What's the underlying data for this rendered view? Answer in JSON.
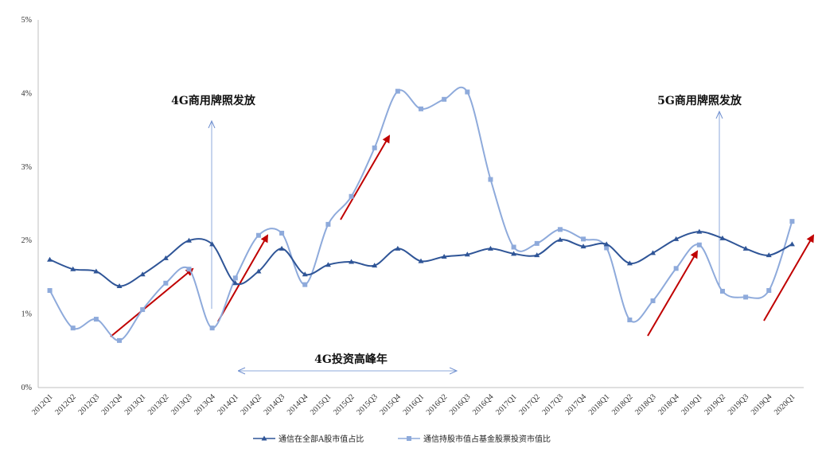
{
  "chart_data": {
    "type": "line",
    "categories": [
      "2012Q1",
      "2012Q2",
      "2012Q3",
      "2012Q4",
      "2013Q1",
      "2013Q2",
      "2013Q3",
      "2013Q4",
      "2014Q1",
      "2014Q2",
      "2014Q3",
      "2014Q4",
      "2015Q1",
      "2015Q2",
      "2015Q3",
      "2015Q4",
      "2016Q1",
      "2016Q2",
      "2016Q3",
      "2016Q4",
      "2017Q1",
      "2017Q2",
      "2017Q3",
      "2017Q4",
      "2018Q1",
      "2018Q2",
      "2018Q3",
      "2018Q4",
      "2019Q1",
      "2019Q2",
      "2019Q3",
      "2019Q4",
      "2020Q1"
    ],
    "series": [
      {
        "name": "通信在全部A股市值占比",
        "marker": "triangle",
        "color": "#2f5597",
        "values": [
          1.74,
          1.61,
          1.58,
          1.38,
          1.54,
          1.76,
          2.0,
          1.95,
          1.42,
          1.58,
          1.89,
          1.54,
          1.67,
          1.71,
          1.66,
          1.89,
          1.72,
          1.78,
          1.81,
          1.89,
          1.82,
          1.8,
          2.01,
          1.92,
          1.95,
          1.69,
          1.83,
          2.02,
          2.12,
          2.03,
          1.89,
          1.8,
          1.95
        ]
      },
      {
        "name": "通信持股市值占基金股票投资市值比",
        "marker": "square",
        "color": "#8eaadb",
        "values": [
          1.32,
          0.81,
          0.93,
          0.64,
          1.06,
          1.42,
          1.61,
          0.81,
          1.49,
          2.07,
          2.1,
          1.4,
          2.22,
          2.6,
          3.26,
          4.03,
          3.79,
          3.92,
          4.02,
          2.83,
          1.91,
          1.96,
          2.15,
          2.02,
          1.9,
          0.92,
          1.18,
          1.62,
          1.94,
          1.31,
          1.23,
          1.32,
          2.26
        ]
      }
    ],
    "ylim": [
      0,
      5
    ],
    "yticks": [
      "0%",
      "1%",
      "2%",
      "3%",
      "4%",
      "5%"
    ],
    "grid": false,
    "legend_position": "bottom",
    "annotations": {
      "label_4g": "4G商用牌照发放",
      "label_5g": "5G商用牌照发放",
      "label_peak": "4G投资高峰年"
    },
    "arrow_color": "#c00000"
  }
}
